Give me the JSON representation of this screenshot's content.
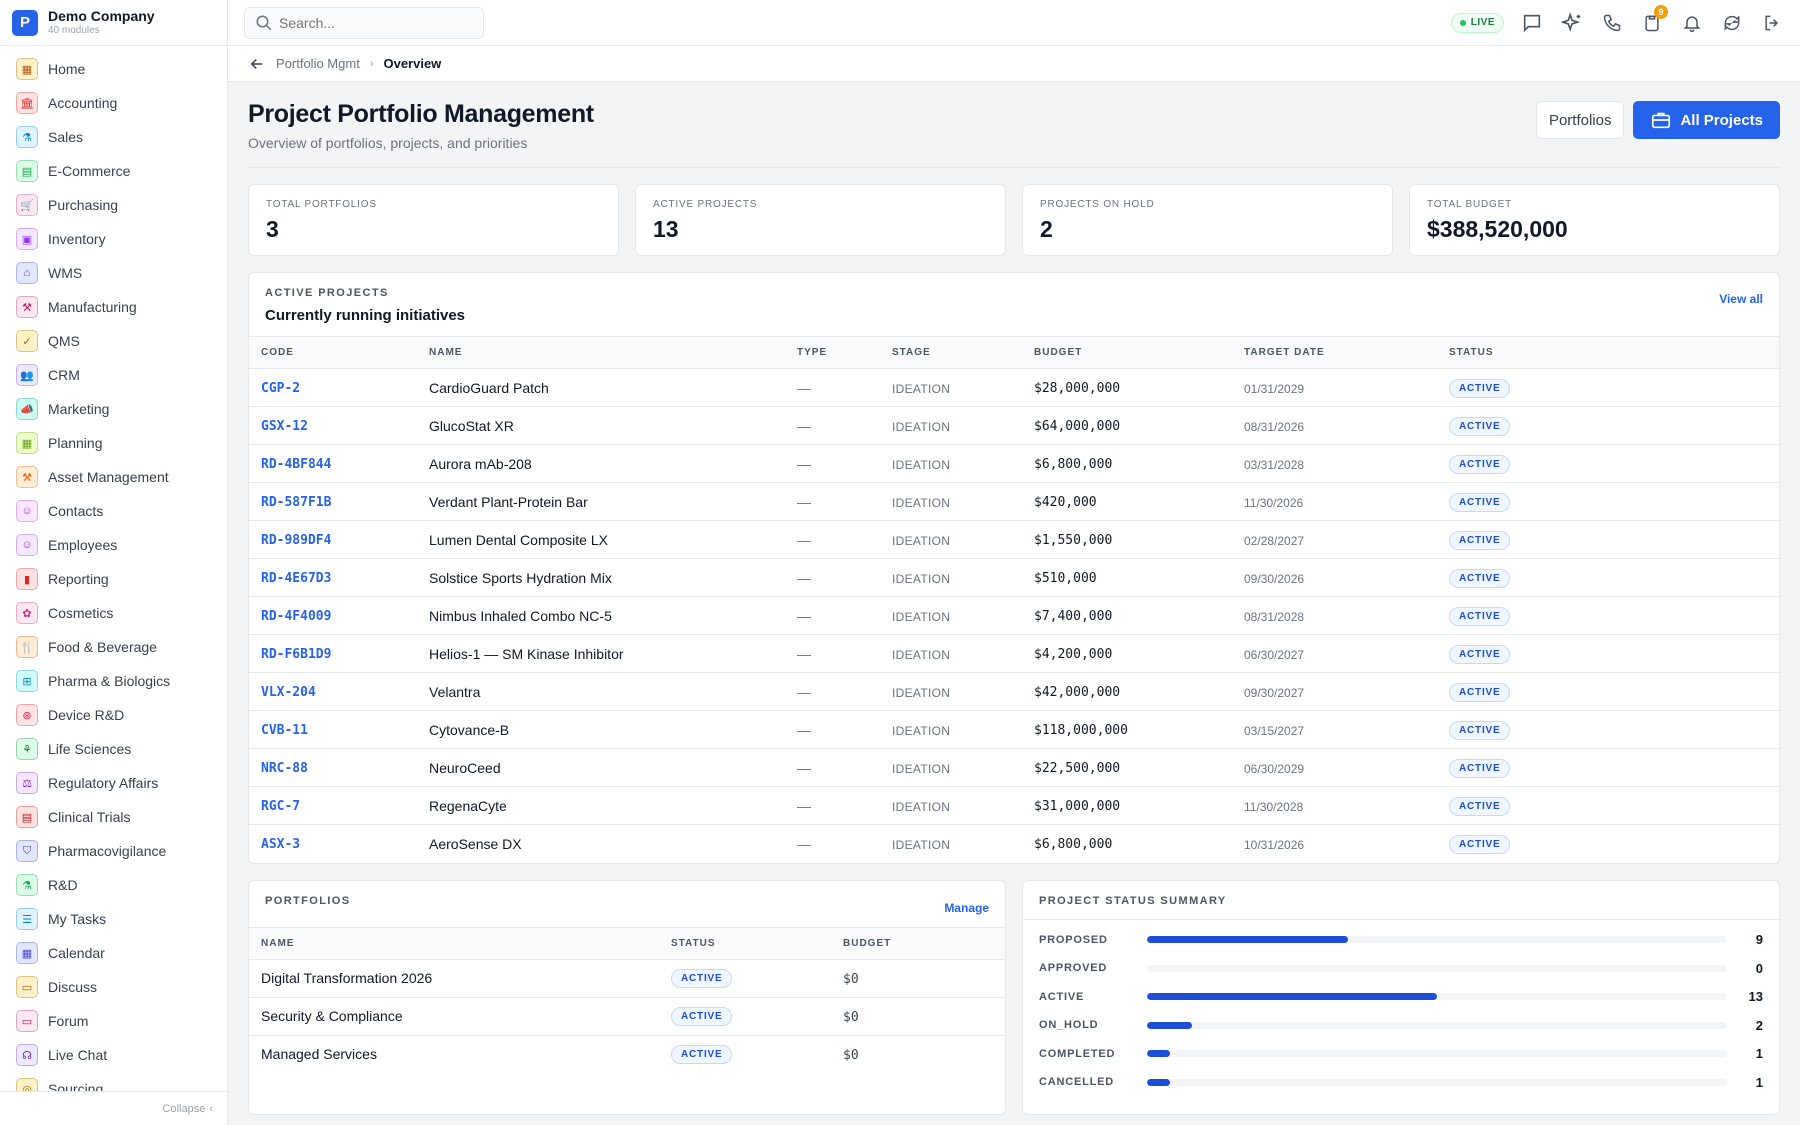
{
  "brand": {
    "logo_letter": "P",
    "name": "Demo Company",
    "sub": "40 modules"
  },
  "sidebar": {
    "items": [
      {
        "label": "Home",
        "icon": "grid-icon",
        "glyph": "▦",
        "color": "#b45309",
        "bg": "#fef3c7"
      },
      {
        "label": "Accounting",
        "icon": "bank-icon",
        "glyph": "🏛",
        "color": "#dc2626",
        "bg": "#fee2e2"
      },
      {
        "label": "Sales",
        "icon": "flask-icon",
        "glyph": "⚗",
        "color": "#0284c7",
        "bg": "#e0f2fe"
      },
      {
        "label": "E-Commerce",
        "icon": "store-icon",
        "glyph": "▤",
        "color": "#16a34a",
        "bg": "#dcfce7"
      },
      {
        "label": "Purchasing",
        "icon": "cart-icon",
        "glyph": "🛒",
        "color": "#db2777",
        "bg": "#fce7f3"
      },
      {
        "label": "Inventory",
        "icon": "box-icon",
        "glyph": "▣",
        "color": "#9333ea",
        "bg": "#f3e8ff"
      },
      {
        "label": "WMS",
        "icon": "warehouse-icon",
        "glyph": "⌂",
        "color": "#4f46e5",
        "bg": "#e0e7ff"
      },
      {
        "label": "Manufacturing",
        "icon": "factory-icon",
        "glyph": "⚒",
        "color": "#be185d",
        "bg": "#fce7f3"
      },
      {
        "label": "QMS",
        "icon": "badge-check-icon",
        "glyph": "✓",
        "color": "#a16207",
        "bg": "#fef3c7"
      },
      {
        "label": "CRM",
        "icon": "users-icon",
        "glyph": "👥",
        "color": "#7c3aed",
        "bg": "#ede9fe"
      },
      {
        "label": "Marketing",
        "icon": "megaphone-icon",
        "glyph": "📣",
        "color": "#0d9488",
        "bg": "#ccfbf1"
      },
      {
        "label": "Planning",
        "icon": "calendar-grid-icon",
        "glyph": "▦",
        "color": "#65a30d",
        "bg": "#ecfccb"
      },
      {
        "label": "Asset Management",
        "icon": "tools-icon",
        "glyph": "⚒",
        "color": "#ea580c",
        "bg": "#ffedd5"
      },
      {
        "label": "Contacts",
        "icon": "contact-icon",
        "glyph": "☺",
        "color": "#c026d3",
        "bg": "#fae8ff"
      },
      {
        "label": "Employees",
        "icon": "id-card-icon",
        "glyph": "☺",
        "color": "#9333ea",
        "bg": "#f3e8ff"
      },
      {
        "label": "Reporting",
        "icon": "bar-chart-icon",
        "glyph": "▮",
        "color": "#dc2626",
        "bg": "#fee2e2"
      },
      {
        "label": "Cosmetics",
        "icon": "lotus-icon",
        "glyph": "✿",
        "color": "#db2777",
        "bg": "#fce7f3"
      },
      {
        "label": "Food & Beverage",
        "icon": "utensils-icon",
        "glyph": "🍴",
        "color": "#c2410c",
        "bg": "#ffedd5"
      },
      {
        "label": "Pharma & Biologics",
        "icon": "pill-bottle-icon",
        "glyph": "⊞",
        "color": "#0891b2",
        "bg": "#cffafe"
      },
      {
        "label": "Device R&D",
        "icon": "chip-icon",
        "glyph": "⊛",
        "color": "#e11d48",
        "bg": "#ffe4e6"
      },
      {
        "label": "Life Sciences",
        "icon": "dna-icon",
        "glyph": "⚘",
        "color": "#15803d",
        "bg": "#dcfce7"
      },
      {
        "label": "Regulatory Affairs",
        "icon": "gavel-icon",
        "glyph": "⚖",
        "color": "#7e22ce",
        "bg": "#f3e8ff"
      },
      {
        "label": "Clinical Trials",
        "icon": "clipboard-icon",
        "glyph": "▤",
        "color": "#b91c1c",
        "bg": "#fee2e2"
      },
      {
        "label": "Pharmacovigilance",
        "icon": "shield-icon",
        "glyph": "⛉",
        "color": "#4338ca",
        "bg": "#e0e7ff"
      },
      {
        "label": "R&D",
        "icon": "beaker-icon",
        "glyph": "⚗",
        "color": "#16a34a",
        "bg": "#dcfce7"
      },
      {
        "label": "My Tasks",
        "icon": "checklist-icon",
        "glyph": "☰",
        "color": "#0284c7",
        "bg": "#e0f2fe"
      },
      {
        "label": "Calendar",
        "icon": "calendar-icon",
        "glyph": "▦",
        "color": "#4f46e5",
        "bg": "#e0e7ff"
      },
      {
        "label": "Discuss",
        "icon": "chat-icon",
        "glyph": "▭",
        "color": "#b45309",
        "bg": "#fef3c7"
      },
      {
        "label": "Forum",
        "icon": "forum-icon",
        "glyph": "▭",
        "color": "#be185d",
        "bg": "#fce7f3"
      },
      {
        "label": "Live Chat",
        "icon": "headset-icon",
        "glyph": "☊",
        "color": "#6d28d9",
        "bg": "#ede9fe"
      },
      {
        "label": "Sourcing",
        "icon": "sourcing-icon",
        "glyph": "◎",
        "color": "#a16207",
        "bg": "#fef3c7"
      }
    ],
    "collapse_label": "Collapse"
  },
  "topbar": {
    "search_placeholder": "Search...",
    "live_label": "LIVE",
    "notification_count": "9"
  },
  "breadcrumb": {
    "parent": "Portfolio Mgmt",
    "current": "Overview"
  },
  "page": {
    "title": "Project Portfolio Management",
    "subtitle": "Overview of portfolios, projects, and priorities",
    "portfolios_btn": "Portfolios",
    "all_projects_btn": "All Projects"
  },
  "stats": [
    {
      "label": "TOTAL PORTFOLIOS",
      "value": "3"
    },
    {
      "label": "ACTIVE PROJECTS",
      "value": "13"
    },
    {
      "label": "PROJECTS ON HOLD",
      "value": "2"
    },
    {
      "label": "TOTAL BUDGET",
      "value": "$388,520,000"
    }
  ],
  "active_projects": {
    "kicker": "ACTIVE PROJECTS",
    "title": "Currently running initiatives",
    "link": "View all",
    "columns": [
      "CODE",
      "NAME",
      "TYPE",
      "STAGE",
      "BUDGET",
      "TARGET DATE",
      "STATUS"
    ],
    "rows": [
      {
        "code": "CGP-2",
        "name": "CardioGuard Patch",
        "type": "—",
        "stage": "IDEATION",
        "budget": "$28,000,000",
        "date": "01/31/2029",
        "status": "ACTIVE"
      },
      {
        "code": "GSX-12",
        "name": "GlucoStat XR",
        "type": "—",
        "stage": "IDEATION",
        "budget": "$64,000,000",
        "date": "08/31/2026",
        "status": "ACTIVE"
      },
      {
        "code": "RD-4BF844",
        "name": "Aurora mAb-208",
        "type": "—",
        "stage": "IDEATION",
        "budget": "$6,800,000",
        "date": "03/31/2028",
        "status": "ACTIVE"
      },
      {
        "code": "RD-587F1B",
        "name": "Verdant Plant-Protein Bar",
        "type": "—",
        "stage": "IDEATION",
        "budget": "$420,000",
        "date": "11/30/2026",
        "status": "ACTIVE"
      },
      {
        "code": "RD-989DF4",
        "name": "Lumen Dental Composite LX",
        "type": "—",
        "stage": "IDEATION",
        "budget": "$1,550,000",
        "date": "02/28/2027",
        "status": "ACTIVE"
      },
      {
        "code": "RD-4E67D3",
        "name": "Solstice Sports Hydration Mix",
        "type": "—",
        "stage": "IDEATION",
        "budget": "$510,000",
        "date": "09/30/2026",
        "status": "ACTIVE"
      },
      {
        "code": "RD-4F4009",
        "name": "Nimbus Inhaled Combo NC-5",
        "type": "—",
        "stage": "IDEATION",
        "budget": "$7,400,000",
        "date": "08/31/2028",
        "status": "ACTIVE"
      },
      {
        "code": "RD-F6B1D9",
        "name": "Helios-1 — SM Kinase Inhibitor",
        "type": "—",
        "stage": "IDEATION",
        "budget": "$4,200,000",
        "date": "06/30/2027",
        "status": "ACTIVE"
      },
      {
        "code": "VLX-204",
        "name": "Velantra",
        "type": "—",
        "stage": "IDEATION",
        "budget": "$42,000,000",
        "date": "09/30/2027",
        "status": "ACTIVE"
      },
      {
        "code": "CVB-11",
        "name": "Cytovance-B",
        "type": "—",
        "stage": "IDEATION",
        "budget": "$118,000,000",
        "date": "03/15/2027",
        "status": "ACTIVE"
      },
      {
        "code": "NRC-88",
        "name": "NeuroCeed",
        "type": "—",
        "stage": "IDEATION",
        "budget": "$22,500,000",
        "date": "06/30/2029",
        "status": "ACTIVE"
      },
      {
        "code": "RGC-7",
        "name": "RegenaCyte",
        "type": "—",
        "stage": "IDEATION",
        "budget": "$31,000,000",
        "date": "11/30/2028",
        "status": "ACTIVE"
      },
      {
        "code": "ASX-3",
        "name": "AeroSense DX",
        "type": "—",
        "stage": "IDEATION",
        "budget": "$6,800,000",
        "date": "10/31/2026",
        "status": "ACTIVE"
      }
    ]
  },
  "portfolios": {
    "kicker": "PORTFOLIOS",
    "link": "Manage",
    "columns": [
      "NAME",
      "STATUS",
      "BUDGET"
    ],
    "rows": [
      {
        "name": "Digital Transformation 2026",
        "status": "ACTIVE",
        "budget": "$0"
      },
      {
        "name": "Security & Compliance",
        "status": "ACTIVE",
        "budget": "$0"
      },
      {
        "name": "Managed Services",
        "status": "ACTIVE",
        "budget": "$0"
      }
    ]
  },
  "status_summary": {
    "kicker": "PROJECT STATUS SUMMARY",
    "items": [
      {
        "label": "PROPOSED",
        "count": 9
      },
      {
        "label": "APPROVED",
        "count": 0
      },
      {
        "label": "ACTIVE",
        "count": 13
      },
      {
        "label": "ON_HOLD",
        "count": 2
      },
      {
        "label": "COMPLETED",
        "count": 1
      },
      {
        "label": "CANCELLED",
        "count": 1
      }
    ],
    "bar_color": "#1d4ed8"
  },
  "colors": {
    "accent": "#2563eb",
    "live_green": "#22c55e",
    "badge": "#f59e0b"
  }
}
